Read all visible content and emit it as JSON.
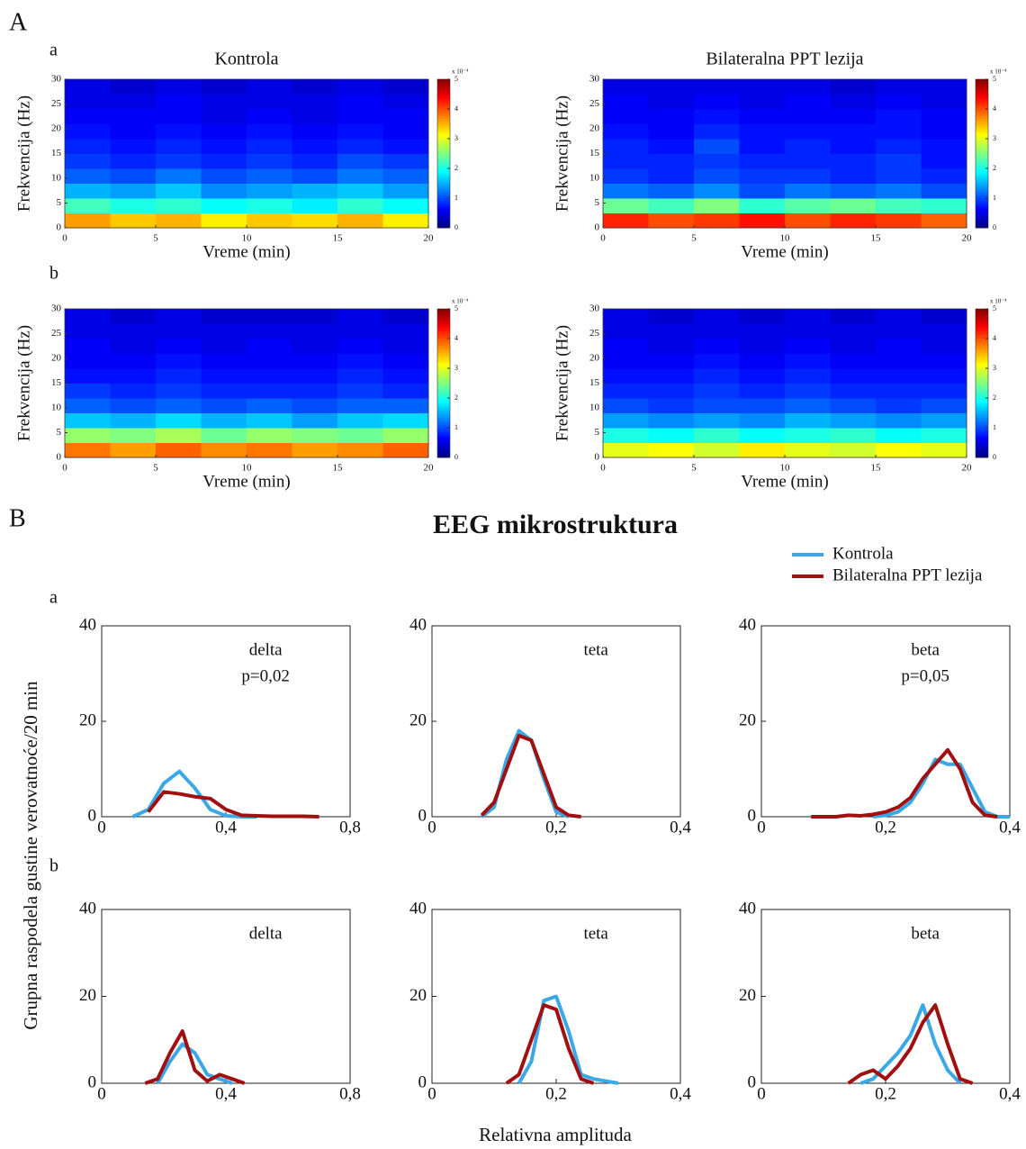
{
  "figure": {
    "panel_A": "A",
    "panel_B": "B",
    "row_a": "a",
    "row_b": "b",
    "title_B": "EEG mikrostruktura",
    "ylabel_B": "Grupna raspodela gustine verovatnoće/20 min",
    "xlabel_B": "Relativna amplituda"
  },
  "chart_data": [
    {
      "type": "heatmap",
      "title": "Kontrola",
      "xlabel": "Vreme (min)",
      "ylabel": "Frekvencija (Hz)",
      "xlim": [
        0,
        20
      ],
      "ylim": [
        0,
        30
      ],
      "xticks": [
        0,
        5,
        10,
        15,
        20
      ],
      "yticks": [
        0,
        5,
        10,
        15,
        20,
        25,
        30
      ],
      "colormap": "jet",
      "clim": [
        0,
        5
      ],
      "cticks": [
        0,
        1,
        2,
        3,
        4,
        5
      ],
      "clabel": "x 10⁻⁴",
      "z": [
        [
          3.6,
          3.4,
          3.5,
          3.2,
          3.4,
          3.3,
          3.5,
          3.2
        ],
        [
          2.2,
          2.0,
          2.1,
          1.9,
          2.0,
          1.8,
          2.1,
          1.9
        ],
        [
          1.5,
          1.4,
          1.6,
          1.3,
          1.4,
          1.5,
          1.6,
          1.4
        ],
        [
          1.1,
          1.0,
          1.2,
          1.0,
          1.1,
          1.0,
          1.2,
          1.1
        ],
        [
          0.9,
          0.8,
          0.9,
          0.8,
          0.9,
          0.8,
          1.0,
          0.9
        ],
        [
          0.8,
          0.7,
          0.8,
          0.7,
          0.8,
          0.7,
          0.8,
          0.7
        ],
        [
          0.7,
          0.6,
          0.7,
          0.6,
          0.7,
          0.6,
          0.7,
          0.6
        ],
        [
          0.6,
          0.6,
          0.6,
          0.5,
          0.6,
          0.5,
          0.6,
          0.6
        ],
        [
          0.5,
          0.5,
          0.6,
          0.5,
          0.5,
          0.5,
          0.6,
          0.5
        ],
        [
          0.5,
          0.4,
          0.5,
          0.4,
          0.5,
          0.4,
          0.5,
          0.4
        ]
      ]
    },
    {
      "type": "heatmap",
      "title": "Bilateralna PPT lezija",
      "xlabel": "Vreme (min)",
      "ylabel": "Frekvencija (Hz)",
      "xlim": [
        0,
        20
      ],
      "ylim": [
        0,
        30
      ],
      "xticks": [
        0,
        5,
        10,
        15,
        20
      ],
      "yticks": [
        0,
        5,
        10,
        15,
        20,
        25,
        30
      ],
      "colormap": "jet",
      "clim": [
        0,
        5
      ],
      "cticks": [
        0,
        1,
        2,
        3,
        4,
        5
      ],
      "clabel": "x 10⁻⁴",
      "z": [
        [
          4.2,
          4.0,
          4.1,
          4.3,
          4.0,
          4.2,
          4.1,
          3.9
        ],
        [
          2.4,
          2.2,
          2.5,
          2.1,
          2.3,
          2.4,
          2.2,
          2.1
        ],
        [
          1.2,
          1.1,
          1.3,
          1.0,
          1.2,
          1.1,
          1.2,
          1.0
        ],
        [
          0.9,
          0.8,
          1.0,
          0.9,
          0.9,
          0.8,
          0.9,
          0.8
        ],
        [
          0.8,
          0.8,
          0.9,
          0.8,
          0.8,
          0.8,
          0.9,
          0.7
        ],
        [
          0.8,
          0.7,
          1.0,
          0.7,
          0.8,
          0.7,
          0.8,
          0.7
        ],
        [
          0.7,
          0.6,
          0.8,
          0.7,
          0.7,
          0.7,
          0.7,
          0.6
        ],
        [
          0.6,
          0.6,
          0.7,
          0.6,
          0.6,
          0.6,
          0.7,
          0.6
        ],
        [
          0.6,
          0.5,
          0.6,
          0.5,
          0.6,
          0.5,
          0.6,
          0.5
        ],
        [
          0.5,
          0.5,
          0.5,
          0.5,
          0.5,
          0.4,
          0.5,
          0.5
        ]
      ]
    },
    {
      "type": "heatmap",
      "xlabel": "Vreme (min)",
      "ylabel": "Frekvencija (Hz)",
      "xlim": [
        0,
        20
      ],
      "ylim": [
        0,
        30
      ],
      "xticks": [
        0,
        5,
        10,
        15,
        20
      ],
      "yticks": [
        0,
        5,
        10,
        15,
        20,
        25,
        30
      ],
      "colormap": "jet",
      "clim": [
        0,
        5
      ],
      "cticks": [
        0,
        1,
        2,
        3,
        4,
        5
      ],
      "clabel": "x 10⁻⁴",
      "z": [
        [
          3.8,
          3.6,
          3.9,
          3.7,
          3.8,
          3.6,
          3.7,
          3.9
        ],
        [
          2.6,
          2.5,
          2.7,
          2.4,
          2.6,
          2.5,
          2.4,
          2.6
        ],
        [
          1.6,
          1.5,
          1.7,
          1.5,
          1.6,
          1.4,
          1.6,
          1.7
        ],
        [
          1.1,
          1.0,
          1.1,
          1.0,
          1.1,
          1.0,
          1.1,
          1.1
        ],
        [
          0.9,
          0.8,
          0.9,
          0.8,
          0.8,
          0.8,
          0.9,
          0.8
        ],
        [
          0.7,
          0.7,
          0.8,
          0.7,
          0.7,
          0.7,
          0.8,
          0.7
        ],
        [
          0.6,
          0.6,
          0.7,
          0.6,
          0.6,
          0.6,
          0.7,
          0.6
        ],
        [
          0.6,
          0.5,
          0.6,
          0.5,
          0.6,
          0.5,
          0.6,
          0.5
        ],
        [
          0.5,
          0.5,
          0.5,
          0.5,
          0.5,
          0.5,
          0.5,
          0.5
        ],
        [
          0.5,
          0.4,
          0.5,
          0.4,
          0.4,
          0.4,
          0.5,
          0.4
        ]
      ]
    },
    {
      "type": "heatmap",
      "xlabel": "Vreme (min)",
      "ylabel": "Frekvencija (Hz)",
      "xlim": [
        0,
        20
      ],
      "ylim": [
        0,
        30
      ],
      "xticks": [
        0,
        5,
        10,
        15,
        20
      ],
      "yticks": [
        0,
        5,
        10,
        15,
        20,
        25,
        30
      ],
      "colormap": "jet",
      "clim": [
        0,
        5
      ],
      "cticks": [
        0,
        1,
        2,
        3,
        4,
        5
      ],
      "clabel": "x 10⁻⁴",
      "z": [
        [
          3.0,
          3.1,
          2.9,
          3.2,
          3.0,
          2.9,
          3.1,
          3.0
        ],
        [
          2.0,
          1.9,
          2.1,
          1.9,
          2.0,
          2.1,
          1.9,
          2.0
        ],
        [
          1.4,
          1.3,
          1.4,
          1.3,
          1.5,
          1.4,
          1.3,
          1.4
        ],
        [
          1.0,
          0.9,
          1.0,
          1.0,
          1.1,
          1.0,
          0.9,
          1.0
        ],
        [
          0.8,
          0.8,
          0.9,
          0.8,
          0.9,
          0.8,
          0.8,
          0.8
        ],
        [
          0.7,
          0.7,
          0.8,
          0.7,
          0.8,
          0.7,
          0.7,
          0.7
        ],
        [
          0.6,
          0.6,
          0.7,
          0.6,
          0.7,
          0.6,
          0.6,
          0.6
        ],
        [
          0.6,
          0.5,
          0.6,
          0.5,
          0.6,
          0.5,
          0.6,
          0.5
        ],
        [
          0.5,
          0.5,
          0.5,
          0.5,
          0.5,
          0.5,
          0.5,
          0.5
        ],
        [
          0.5,
          0.4,
          0.5,
          0.4,
          0.5,
          0.4,
          0.5,
          0.4
        ]
      ]
    },
    {
      "type": "line",
      "annotations": [
        "delta",
        "p=0,02"
      ],
      "legend": "upper right",
      "xlim": [
        0,
        0.8
      ],
      "ylim": [
        0,
        40
      ],
      "xticks": [
        0,
        {
          "value": 0.4,
          "label": "0,4"
        },
        {
          "value": 0.8,
          "label": "0,8"
        }
      ],
      "yticks": [
        0,
        20,
        40
      ],
      "x": [
        0.1,
        0.15,
        0.2,
        0.25,
        0.3,
        0.35,
        0.4,
        0.45,
        0.5,
        0.55,
        0.6,
        0.65,
        0.7
      ],
      "series": [
        {
          "name": "Kontrola",
          "color": "#3aa8e8",
          "values": [
            0,
            1.5,
            7,
            9.5,
            6,
            1.5,
            0.2,
            0,
            0,
            null,
            null,
            null,
            null
          ]
        },
        {
          "name": "Bilateralna PPT lezija",
          "color": "#a01010",
          "values": [
            null,
            1,
            5.2,
            4.8,
            4.2,
            3.8,
            1.5,
            0.3,
            0.2,
            0.1,
            0.1,
            0.1,
            0
          ]
        }
      ]
    },
    {
      "type": "line",
      "annotations": [
        "teta"
      ],
      "xlim": [
        0,
        0.4
      ],
      "ylim": [
        0,
        40
      ],
      "xticks": [
        0,
        {
          "value": 0.2,
          "label": "0,2"
        },
        {
          "value": 0.4,
          "label": "0,4"
        }
      ],
      "yticks": [
        0,
        20,
        40
      ],
      "x": [
        0.06,
        0.08,
        0.1,
        0.12,
        0.14,
        0.16,
        0.18,
        0.2,
        0.22,
        0.24
      ],
      "series": [
        {
          "name": "Kontrola",
          "color": "#3aa8e8",
          "values": [
            null,
            0,
            2,
            12,
            18,
            16,
            8,
            1,
            0,
            null
          ]
        },
        {
          "name": "Bilateralna PPT lezija",
          "color": "#a01010",
          "values": [
            null,
            0.3,
            3,
            10,
            17,
            16,
            9,
            2,
            0.3,
            0
          ]
        }
      ]
    },
    {
      "type": "line",
      "annotations": [
        "beta",
        "p=0,05"
      ],
      "xlim": [
        0,
        0.4
      ],
      "ylim": [
        0,
        40
      ],
      "xticks": [
        0,
        {
          "value": 0.2,
          "label": "0,2"
        },
        {
          "value": 0.4,
          "label": "0,4"
        }
      ],
      "yticks": [
        0,
        20,
        40
      ],
      "x": [
        0.08,
        0.1,
        0.12,
        0.14,
        0.16,
        0.18,
        0.2,
        0.22,
        0.24,
        0.26,
        0.28,
        0.3,
        0.32,
        0.34,
        0.36,
        0.38,
        0.4
      ],
      "series": [
        {
          "name": "Kontrola",
          "color": "#3aa8e8",
          "values": [
            null,
            null,
            null,
            null,
            null,
            0,
            0.3,
            1,
            3,
            7,
            12,
            11,
            11,
            6,
            1,
            0,
            0
          ]
        },
        {
          "name": "Bilateralna PPT lezija",
          "color": "#a01010",
          "values": [
            0,
            0,
            0,
            0.3,
            0.2,
            0.5,
            1,
            2,
            4,
            8,
            11,
            14,
            10,
            3,
            0.3,
            0,
            null
          ]
        }
      ]
    },
    {
      "type": "line",
      "annotations": [
        "delta"
      ],
      "xlim": [
        0,
        0.8
      ],
      "ylim": [
        0,
        40
      ],
      "xticks": [
        0,
        {
          "value": 0.4,
          "label": "0,4"
        },
        {
          "value": 0.8,
          "label": "0,8"
        }
      ],
      "yticks": [
        0,
        20,
        40
      ],
      "x": [
        0.14,
        0.18,
        0.22,
        0.26,
        0.3,
        0.34,
        0.38,
        0.42,
        0.46
      ],
      "series": [
        {
          "name": "Kontrola",
          "color": "#3aa8e8",
          "values": [
            null,
            0,
            5,
            9,
            7,
            2,
            1,
            0,
            null
          ]
        },
        {
          "name": "Bilateralna PPT lezija",
          "color": "#a01010",
          "values": [
            0,
            1,
            7,
            12,
            3,
            0.5,
            2,
            1,
            0
          ]
        }
      ]
    },
    {
      "type": "line",
      "annotations": [
        "teta"
      ],
      "xlim": [
        0,
        0.4
      ],
      "ylim": [
        0,
        40
      ],
      "xticks": [
        0,
        {
          "value": 0.2,
          "label": "0,2"
        },
        {
          "value": 0.4,
          "label": "0,4"
        }
      ],
      "yticks": [
        0,
        20,
        40
      ],
      "x": [
        0.12,
        0.14,
        0.16,
        0.18,
        0.2,
        0.22,
        0.24,
        0.26,
        0.28,
        0.3
      ],
      "series": [
        {
          "name": "Kontrola",
          "color": "#3aa8e8",
          "values": [
            null,
            0,
            5,
            19,
            20,
            12,
            2,
            1,
            0.5,
            0
          ]
        },
        {
          "name": "Bilateralna PPT lezija",
          "color": "#a01010",
          "values": [
            0,
            2,
            10,
            18,
            17,
            8,
            1,
            0,
            null,
            null
          ]
        }
      ]
    },
    {
      "type": "line",
      "annotations": [
        "beta"
      ],
      "xlim": [
        0,
        0.4
      ],
      "ylim": [
        0,
        40
      ],
      "xticks": [
        0,
        {
          "value": 0.2,
          "label": "0,2"
        },
        {
          "value": 0.4,
          "label": "0,4"
        }
      ],
      "yticks": [
        0,
        20,
        40
      ],
      "x": [
        0.14,
        0.16,
        0.18,
        0.2,
        0.22,
        0.24,
        0.26,
        0.28,
        0.3,
        0.32,
        0.34
      ],
      "series": [
        {
          "name": "Kontrola",
          "color": "#3aa8e8",
          "values": [
            null,
            0,
            1,
            4,
            7,
            11,
            18,
            9,
            3,
            0,
            null
          ]
        },
        {
          "name": "Bilateralna PPT lezija",
          "color": "#a01010",
          "values": [
            0,
            2,
            3,
            1,
            4,
            8,
            14,
            18,
            9,
            1,
            0
          ]
        }
      ]
    }
  ]
}
